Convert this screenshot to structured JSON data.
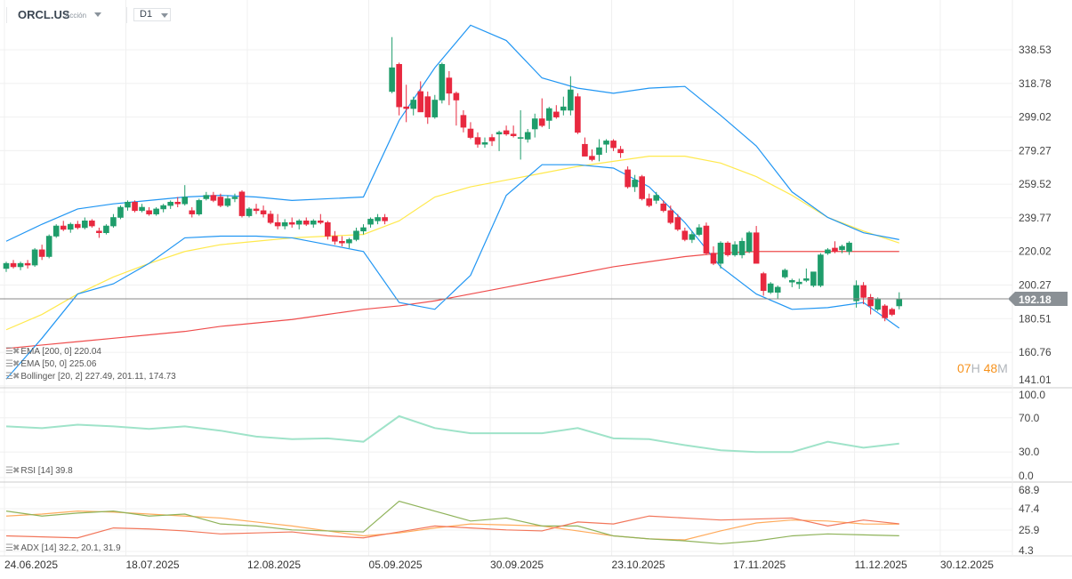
{
  "header": {
    "symbol": "ORCL.US",
    "type": "Acción",
    "timeframe": "D1"
  },
  "price_axis": [
    "338.53",
    "318.78",
    "299.02",
    "279.27",
    "259.52",
    "239.77",
    "220.02",
    "200.27",
    "180.51",
    "160.76",
    "141.01"
  ],
  "current_price": "192.18",
  "timer": {
    "hours": "07",
    "h": "H",
    "minutes": "48",
    "m": "M"
  },
  "rsi_axis": [
    "100.0",
    "70.0",
    "30.0",
    "0.0"
  ],
  "adx_axis": [
    "68.9",
    "47.4",
    "25.9",
    "4.3"
  ],
  "x_axis": [
    {
      "label": "24.06.2025",
      "idx": 0
    },
    {
      "label": "18.07.2025",
      "idx": 17
    },
    {
      "label": "12.08.2025",
      "idx": 34
    },
    {
      "label": "05.09.2025",
      "idx": 51
    },
    {
      "label": "30.09.2025",
      "idx": 68
    },
    {
      "label": "23.10.2025",
      "idx": 85
    },
    {
      "label": "17.11.2025",
      "idx": 102
    },
    {
      "label": "11.12.2025",
      "idx": 119
    },
    {
      "label": "30.12.2025",
      "idx": 131
    }
  ],
  "legends": {
    "ema200": "EMA [200, 0] 220.04",
    "ema50": "EMA [50, 0] 225.06",
    "bollinger": "Bollinger  [20, 2] 227.49,  201.11,  174.73",
    "rsi": "RSI  [14]  39.8",
    "adx": "ADX  [14]  32.2,  20.1,  31.9"
  },
  "colors": {
    "up": "#1f9d6b",
    "down": "#e8283f",
    "ema200": "#ef4d4d",
    "ema50": "#ffe94d",
    "bollinger": "#2196f3",
    "rsi": "#9fe3c9",
    "adx_a": "#ffab5c",
    "adx_b": "#8fb35a",
    "adx_c": "#f2765a"
  },
  "chart_data": {
    "type": "candlestick",
    "ylim": [
      141.01,
      338.53
    ],
    "candles_ohlc": [
      [
        210,
        214,
        208,
        213
      ],
      [
        213,
        215,
        210,
        211
      ],
      [
        211,
        214,
        209,
        213
      ],
      [
        213,
        215,
        210,
        212
      ],
      [
        212,
        222,
        211,
        221
      ],
      [
        221,
        224,
        215,
        217
      ],
      [
        217,
        230,
        216,
        229
      ],
      [
        229,
        236,
        228,
        235
      ],
      [
        235,
        238,
        232,
        233
      ],
      [
        233,
        237,
        231,
        236
      ],
      [
        236,
        238,
        233,
        234
      ],
      [
        234,
        240,
        233,
        238
      ],
      [
        238,
        239,
        234,
        235
      ],
      [
        232,
        234,
        228,
        231
      ],
      [
        231,
        236,
        230,
        235
      ],
      [
        235,
        242,
        234,
        240
      ],
      [
        240,
        247,
        239,
        246
      ],
      [
        246,
        250,
        244,
        249
      ],
      [
        249,
        250,
        243,
        244
      ],
      [
        244,
        248,
        243,
        246
      ],
      [
        244,
        246,
        241,
        242
      ],
      [
        242,
        246,
        241,
        245
      ],
      [
        245,
        248,
        243,
        247
      ],
      [
        247,
        250,
        245,
        249
      ],
      [
        249,
        252,
        246,
        248
      ],
      [
        248,
        259,
        247,
        252
      ],
      [
        244,
        246,
        240,
        242
      ],
      [
        242,
        251,
        241,
        250
      ],
      [
        251,
        255,
        250,
        253
      ],
      [
        253,
        255,
        249,
        250
      ],
      [
        252,
        254,
        246,
        247
      ],
      [
        247,
        253,
        246,
        251
      ],
      [
        251,
        254,
        249,
        252
      ],
      [
        255,
        256,
        240,
        241
      ],
      [
        241,
        246,
        240,
        245
      ],
      [
        245,
        248,
        242,
        244
      ],
      [
        244,
        247,
        240,
        242
      ],
      [
        242,
        244,
        236,
        237
      ],
      [
        237,
        242,
        233,
        235
      ],
      [
        235,
        239,
        233,
        237
      ],
      [
        237,
        240,
        234,
        236
      ],
      [
        236,
        239,
        233,
        238
      ],
      [
        238,
        240,
        235,
        236
      ],
      [
        236,
        239,
        234,
        238
      ],
      [
        238,
        242,
        236,
        237
      ],
      [
        237,
        238,
        227,
        229
      ],
      [
        229,
        232,
        224,
        226
      ],
      [
        226,
        229,
        223,
        225
      ],
      [
        225,
        228,
        222,
        227
      ],
      [
        227,
        234,
        226,
        232
      ],
      [
        232,
        236,
        230,
        234
      ],
      [
        236,
        240,
        234,
        239
      ],
      [
        238,
        242,
        236,
        240
      ],
      [
        240,
        242,
        236,
        238
      ],
      [
        314,
        346,
        313,
        328
      ],
      [
        330,
        331,
        300,
        305
      ],
      [
        305,
        318,
        296,
        304
      ],
      [
        304,
        311,
        300,
        309
      ],
      [
        314,
        320,
        302,
        302
      ],
      [
        311,
        314,
        295,
        299
      ],
      [
        299,
        312,
        298,
        309
      ],
      [
        309,
        331,
        307,
        330
      ],
      [
        322,
        326,
        306,
        313
      ],
      [
        313,
        314,
        294,
        309
      ],
      [
        300,
        303,
        290,
        293
      ],
      [
        292,
        296,
        286,
        287
      ],
      [
        287,
        290,
        281,
        283
      ],
      [
        283,
        287,
        281,
        284
      ],
      [
        287,
        289,
        282,
        285
      ],
      [
        289,
        291,
        279,
        290
      ],
      [
        291,
        294,
        288,
        289
      ],
      [
        289,
        294,
        287,
        288
      ],
      [
        287,
        303,
        274,
        287
      ],
      [
        286,
        292,
        284,
        290
      ],
      [
        292,
        301,
        287,
        298
      ],
      [
        298,
        310,
        293,
        294
      ],
      [
        297,
        305,
        292,
        304
      ],
      [
        302,
        306,
        298,
        299
      ],
      [
        303,
        311,
        300,
        305
      ],
      [
        303,
        323,
        300,
        315
      ],
      [
        311,
        313,
        289,
        290
      ],
      [
        283,
        287,
        276,
        276
      ],
      [
        276,
        280,
        273,
        274
      ],
      [
        277,
        286,
        273,
        281
      ],
      [
        283,
        286,
        278,
        285
      ],
      [
        285,
        286,
        279,
        281
      ],
      [
        280,
        282,
        275,
        278
      ],
      [
        268,
        270,
        257,
        258
      ],
      [
        258,
        265,
        255,
        262
      ],
      [
        264,
        265,
        250,
        251
      ],
      [
        251,
        254,
        246,
        247
      ],
      [
        250,
        255,
        248,
        253
      ],
      [
        248,
        250,
        243,
        244
      ],
      [
        244,
        247,
        236,
        237
      ],
      [
        240,
        242,
        232,
        233
      ],
      [
        232,
        234,
        226,
        227
      ],
      [
        227,
        232,
        225,
        230
      ],
      [
        230,
        236,
        229,
        234
      ],
      [
        235,
        237,
        218,
        219
      ],
      [
        219,
        223,
        212,
        213
      ],
      [
        213,
        226,
        210,
        225
      ],
      [
        225,
        226,
        217,
        218
      ],
      [
        218,
        226,
        217,
        224
      ],
      [
        218,
        228,
        216,
        226
      ],
      [
        220,
        232,
        219,
        231
      ],
      [
        231,
        235,
        213,
        213
      ],
      [
        207,
        208,
        194,
        197
      ],
      [
        196,
        202,
        195,
        201
      ],
      [
        196,
        200,
        192,
        199
      ],
      [
        205,
        210,
        204,
        209
      ],
      [
        202,
        204,
        199,
        203
      ],
      [
        201,
        204,
        198,
        202
      ],
      [
        203,
        210,
        202,
        204
      ],
      [
        200,
        208,
        199,
        208
      ],
      [
        200,
        219,
        199,
        218
      ],
      [
        219,
        222,
        218,
        221
      ],
      [
        222,
        226,
        219,
        220
      ],
      [
        221,
        224,
        219,
        223
      ],
      [
        220,
        226,
        218,
        225
      ],
      [
        191,
        203,
        187,
        200
      ],
      [
        200,
        202,
        189,
        193
      ],
      [
        193,
        195,
        183,
        188
      ],
      [
        186,
        193,
        185,
        192
      ],
      [
        188,
        189,
        179,
        181
      ],
      [
        186,
        187,
        182,
        183
      ],
      [
        188,
        196,
        186,
        192.18
      ]
    ],
    "overlay_sample_step": 5,
    "ema200": [
      163,
      165,
      167,
      169,
      171,
      173,
      176,
      178,
      180,
      183,
      186,
      188,
      191,
      195,
      199,
      203,
      207,
      211,
      214,
      217,
      219,
      220,
      220,
      220,
      220,
      220
    ],
    "ema50": [
      174,
      183,
      195,
      205,
      213,
      220,
      224,
      226,
      228,
      229,
      230,
      238,
      252,
      258,
      262,
      266,
      270,
      273,
      276,
      276,
      272,
      264,
      253,
      240,
      232,
      225
    ],
    "bollinger_upper": [
      226,
      236,
      245,
      248,
      250,
      252,
      253,
      252,
      250,
      251,
      252,
      297,
      328,
      353,
      344,
      322,
      316,
      313,
      316,
      317,
      300,
      282,
      255,
      240,
      231,
      227
    ],
    "bollinger_lower": [
      145,
      169,
      195,
      201,
      213,
      228,
      229,
      229,
      228,
      224,
      220,
      190,
      186,
      206,
      253,
      271,
      271,
      269,
      258,
      237,
      211,
      195,
      186,
      187,
      190,
      175
    ],
    "rsi": {
      "ylim": [
        0,
        100
      ],
      "values": [
        60,
        58,
        62,
        60,
        57,
        60,
        55,
        48,
        45,
        46,
        42,
        72,
        58,
        52,
        52,
        52,
        58,
        46,
        45,
        38,
        32,
        30,
        30,
        42,
        35,
        39.8
      ]
    },
    "adx": {
      "ylim": [
        4.3,
        68.9
      ],
      "series_a": [
        40,
        42,
        45,
        44,
        42,
        40,
        38,
        34,
        30,
        25,
        20,
        23,
        28,
        32,
        31,
        30,
        25,
        20,
        17,
        16,
        25,
        33,
        36,
        35,
        32,
        31.9
      ],
      "series_b": [
        45,
        40,
        43,
        45,
        40,
        42,
        32,
        30,
        26,
        25,
        24,
        55,
        45,
        35,
        38,
        30,
        30,
        20,
        17,
        15,
        12,
        15,
        20,
        22,
        21,
        20.1
      ],
      "series_c": [
        20,
        19,
        18,
        28,
        27,
        25,
        22,
        23,
        24,
        20,
        18,
        24,
        30,
        28,
        26,
        25,
        34,
        32,
        40,
        38,
        36,
        37,
        38,
        30,
        36,
        32.2
      ]
    }
  }
}
